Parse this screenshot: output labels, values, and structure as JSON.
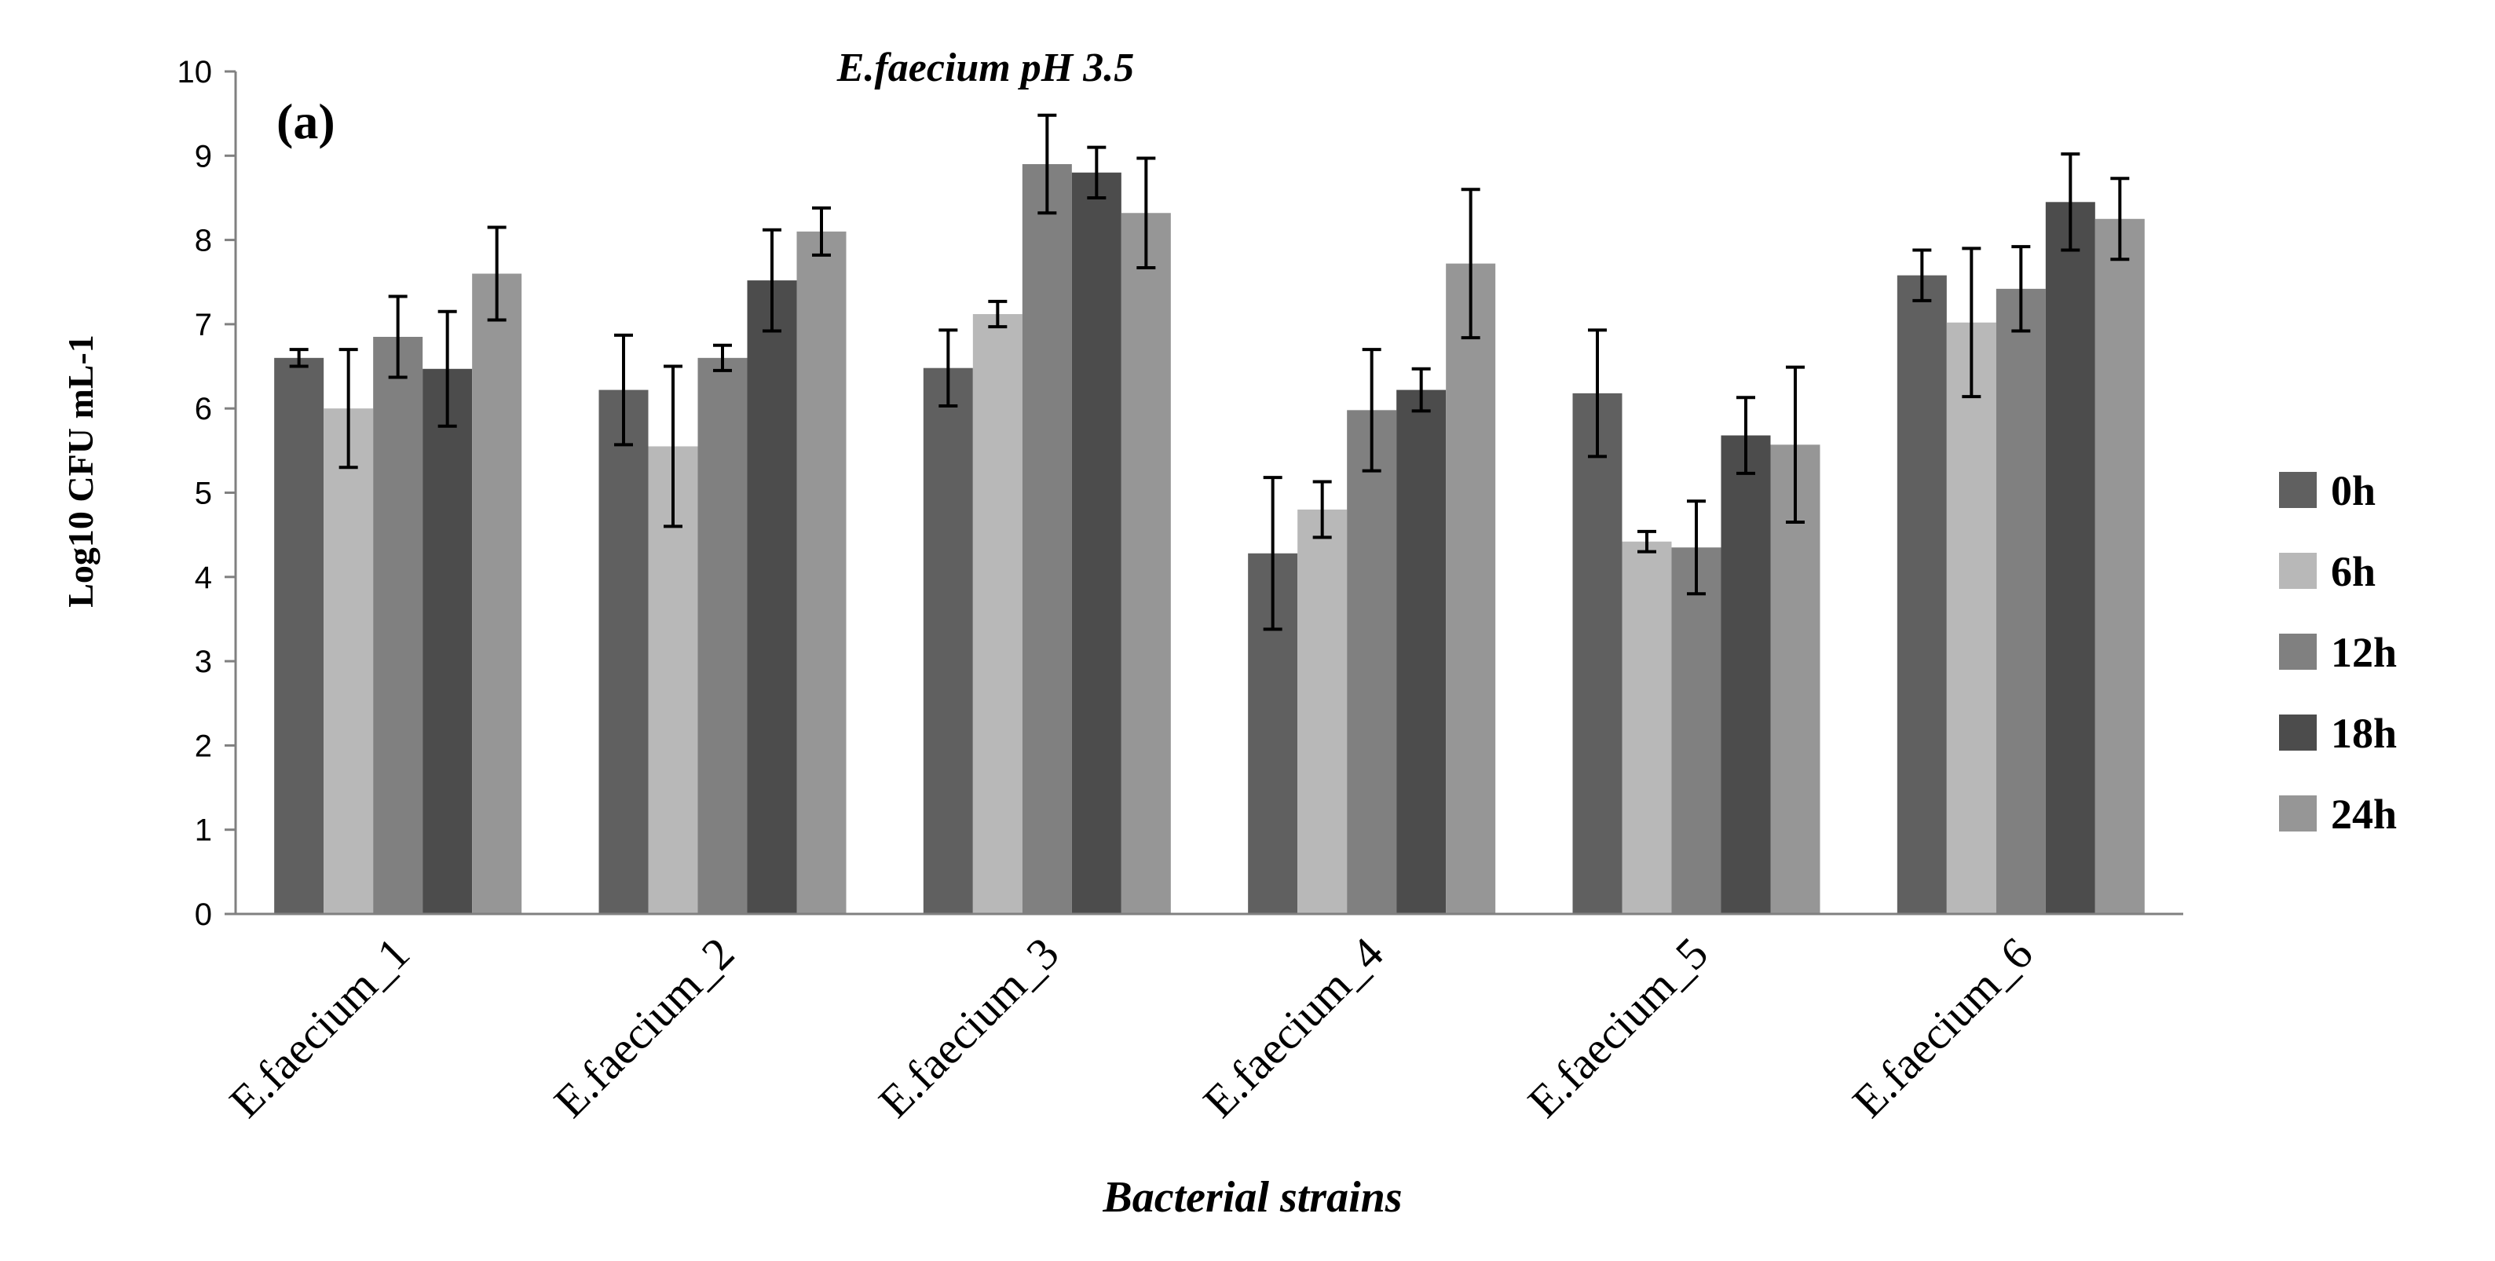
{
  "chart_data": {
    "type": "bar",
    "title": "E.faecium pH 3.5",
    "panel_label": "(a)",
    "xlabel": "Bacterial strains",
    "ylabel": "Log10 CFU mL-1",
    "ylim": [
      0,
      10
    ],
    "yticks": [
      0,
      1,
      2,
      3,
      4,
      5,
      6,
      7,
      8,
      9,
      10
    ],
    "grid": false,
    "legend_position": "right",
    "categories": [
      "E.faecium_1",
      "E.faecium_2",
      "E.faecium_3",
      "E.faecium_4",
      "E.faecium_5",
      "E.faecium_6"
    ],
    "series": [
      {
        "name": "0h",
        "color": "#606060",
        "values": [
          6.6,
          6.22,
          6.48,
          4.28,
          6.18,
          7.58
        ],
        "errors": [
          0.1,
          0.65,
          0.45,
          0.9,
          0.75,
          0.3
        ]
      },
      {
        "name": "6h",
        "color": "#b8b8b8",
        "values": [
          6.0,
          5.55,
          7.12,
          4.8,
          4.42,
          7.02
        ],
        "errors": [
          0.7,
          0.95,
          0.15,
          0.33,
          0.12,
          0.88
        ]
      },
      {
        "name": "12h",
        "color": "#808080",
        "values": [
          6.85,
          6.6,
          8.9,
          5.98,
          4.35,
          7.42
        ],
        "errors": [
          0.48,
          0.15,
          0.58,
          0.72,
          0.55,
          0.5
        ]
      },
      {
        "name": "18h",
        "color": "#4c4c4c",
        "values": [
          6.47,
          7.52,
          8.8,
          6.22,
          5.68,
          8.45
        ],
        "errors": [
          0.68,
          0.6,
          0.3,
          0.25,
          0.45,
          0.57
        ]
      },
      {
        "name": "24h",
        "color": "#969696",
        "values": [
          7.6,
          8.1,
          8.32,
          7.72,
          5.57,
          8.25
        ],
        "errors": [
          0.55,
          0.28,
          0.65,
          0.88,
          0.92,
          0.48
        ]
      }
    ]
  }
}
